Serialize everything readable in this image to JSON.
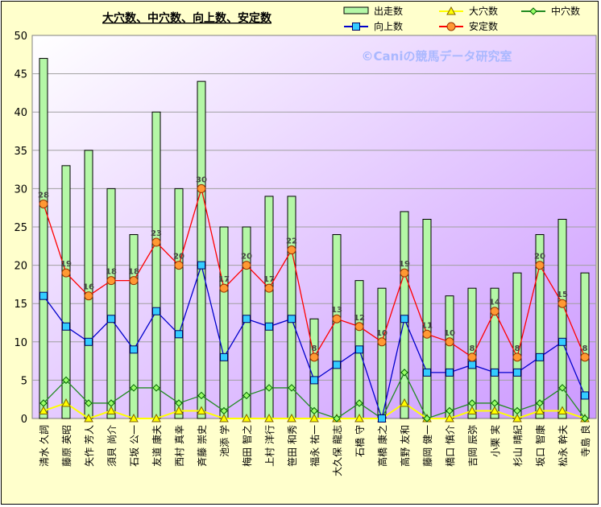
{
  "chart_data": {
    "type": "bar",
    "title": "大穴数、中穴数、向上数、安定数",
    "watermark": "©Caniの競馬データ研究室",
    "categories": [
      "清水 久詞",
      "藤原 英昭",
      "矢作 芳人",
      "須貝 尚介",
      "石坂 公一",
      "友道 康夫",
      "西村 真幸",
      "斉藤 崇史",
      "池添 学",
      "梅田 智之",
      "上村 洋行",
      "笹田 和秀",
      "福永 祐一",
      "大久保 龍志",
      "石橋 守",
      "高橋 康之",
      "高野 友和",
      "藤岡 健一",
      "橋口 慎介",
      "吉岡 辰弥",
      "小栗 実",
      "杉山 晴紀",
      "坂口 智康",
      "松永 幹夫",
      "寺島 良"
    ],
    "ylim": [
      0,
      50
    ],
    "yticks": [
      0,
      5,
      10,
      15,
      20,
      25,
      30,
      35,
      40,
      45,
      50
    ],
    "grid": true,
    "legend_position": "top-right",
    "series": [
      {
        "name": "出走数",
        "kind": "bar",
        "color": "#b4f7a6",
        "values": [
          47,
          33,
          35,
          30,
          24,
          40,
          30,
          44,
          25,
          25,
          29,
          29,
          13,
          24,
          18,
          17,
          27,
          26,
          16,
          17,
          17,
          19,
          24,
          26,
          19
        ]
      },
      {
        "name": "大穴数",
        "kind": "line",
        "color": "#ffff00",
        "values": [
          1,
          2,
          0,
          1,
          0,
          0,
          1,
          1,
          0,
          0,
          0,
          0,
          0,
          0,
          0,
          0,
          2,
          0,
          0,
          1,
          1,
          0,
          1,
          1,
          0
        ]
      },
      {
        "name": "中穴数",
        "kind": "line",
        "color": "#228b22",
        "values": [
          2,
          5,
          2,
          2,
          4,
          4,
          2,
          3,
          1,
          3,
          4,
          4,
          1,
          0,
          2,
          0,
          6,
          0,
          1,
          2,
          2,
          1,
          2,
          4,
          0
        ]
      },
      {
        "name": "向上数",
        "kind": "line",
        "color": "#0000cc",
        "values": [
          16,
          12,
          10,
          13,
          9,
          14,
          11,
          20,
          8,
          13,
          12,
          13,
          5,
          7,
          9,
          0,
          13,
          6,
          6,
          7,
          6,
          6,
          8,
          10,
          3
        ]
      },
      {
        "name": "安定数",
        "kind": "line",
        "color": "#ff0000",
        "values": [
          28,
          19,
          16,
          18,
          18,
          23,
          20,
          30,
          17,
          20,
          17,
          22,
          8,
          13,
          12,
          10,
          19,
          11,
          10,
          8,
          14,
          8,
          20,
          15,
          8
        ]
      }
    ]
  }
}
